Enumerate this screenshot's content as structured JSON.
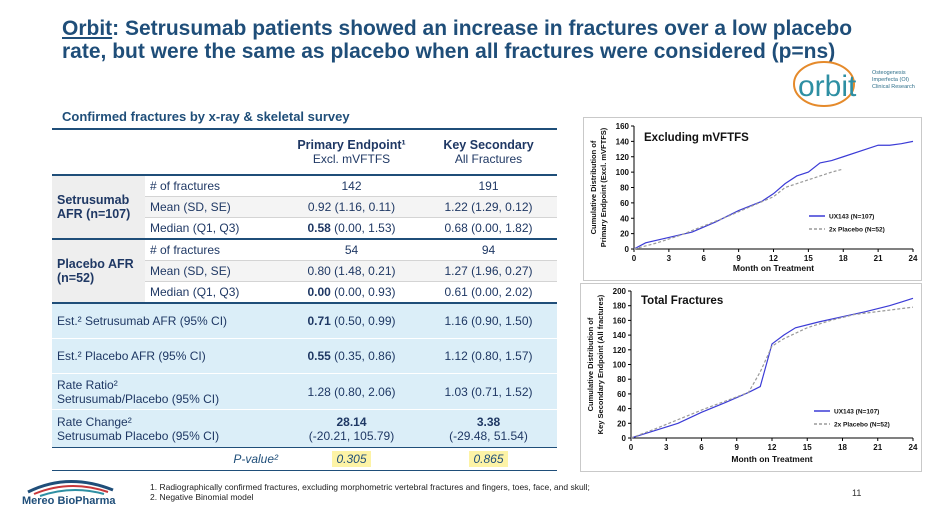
{
  "title": {
    "lead": "Orbit",
    "text": ": Setrusumab patients showed an increase in fractures over a low placebo rate, but were the same as placebo when all fractures were considered (p=ns)"
  },
  "logo": {
    "name": "orbit",
    "tagline": [
      "Osteogenesis",
      "Imperfecta (OI)",
      "Clinical Research"
    ]
  },
  "subtitle": "Confirmed fractures by x-ray & skeletal survey",
  "table": {
    "headers": [
      {
        "title": "Primary Endpoint¹",
        "sub": "Excl. mVFTFS"
      },
      {
        "title": "Key Secondary",
        "sub": "All Fractures"
      }
    ],
    "groups": [
      {
        "name": "Setrusumab AFR (n=107)",
        "rows": [
          {
            "label": "# of fractures",
            "cells": [
              "142",
              "191"
            ]
          },
          {
            "label": "Mean (SD, SE)",
            "cells": [
              "0.92 (1.16, 0.11)",
              "1.22 (1.29, 0.12)"
            ]
          },
          {
            "label": "Median (Q1, Q3)",
            "cells": [
              {
                "lead": "0.58",
                "rest": "(0.00, 1.53)"
              },
              "0.68 (0.00, 1.82)"
            ]
          }
        ]
      },
      {
        "name": "Placebo AFR (n=52)",
        "rows": [
          {
            "label": "# of fractures",
            "cells": [
              "54",
              "94"
            ]
          },
          {
            "label": "Mean (SD, SE)",
            "cells": [
              "0.80 (1.48, 0.21)",
              "1.27 (1.96, 0.27)"
            ]
          },
          {
            "label": "Median (Q1, Q3)",
            "cells": [
              {
                "lead": "0.00",
                "rest": "(0.00, 0.93)"
              },
              "0.61 (0.00, 2.02)"
            ]
          }
        ]
      }
    ],
    "estimates": [
      {
        "label": [
          "Est.² Setrusumab AFR (95% CI)"
        ],
        "cells": [
          {
            "lead": "0.71",
            "rest": "(0.50, 0.99)"
          },
          "1.16 (0.90, 1.50)"
        ]
      },
      {
        "label": [
          "Est.² Placebo AFR (95% CI)"
        ],
        "cells": [
          {
            "lead": "0.55",
            "rest": "(0.35, 0.86)"
          },
          "1.12 (0.80, 1.57)"
        ]
      },
      {
        "label": [
          "Rate Ratio²",
          "Setrusumab/Placebo (95% CI)"
        ],
        "cells": [
          "1.28 (0.80, 2.06)",
          "1.03 (0.71, 1.52)"
        ]
      },
      {
        "label": [
          "Rate Change²",
          "Setrusumab Placebo (95% CI)"
        ],
        "cells": [
          {
            "lead": "28.14",
            "rest": "(-20.21, 105.79)"
          },
          {
            "lead": "3.38",
            "rest": "(-29.48, 51.54)"
          }
        ]
      }
    ],
    "pvalue": {
      "label": "P-value²",
      "values": [
        "0.305",
        "0.865"
      ]
    }
  },
  "chart_data": [
    {
      "type": "line",
      "title": "Excluding mVFTFS",
      "xlabel": "Month on Treatment",
      "ylabel": [
        "Cumulative Distribution of",
        "Primary Endpoint (Excl. mVFTFS)"
      ],
      "xlim": [
        0,
        24
      ],
      "xticks": [
        0,
        3,
        6,
        9,
        12,
        15,
        18,
        21,
        24
      ],
      "ylim": [
        0,
        160
      ],
      "yticks": [
        0,
        20,
        40,
        60,
        80,
        100,
        120,
        140,
        160
      ],
      "series": [
        {
          "name": "UX143 (N=107)",
          "color": "#3b3bd6",
          "style": "solid",
          "x": [
            0,
            1,
            3,
            5,
            7,
            9,
            11,
            12,
            13,
            14,
            15,
            16,
            17,
            18,
            20,
            21,
            22,
            23,
            24
          ],
          "values": [
            0,
            8,
            15,
            22,
            35,
            50,
            62,
            72,
            85,
            95,
            100,
            112,
            115,
            120,
            130,
            135,
            135,
            137,
            140
          ]
        },
        {
          "name": "2x Placebo (N=52)",
          "color": "#9a9a9a",
          "style": "dashed",
          "x": [
            0,
            2,
            4,
            6,
            8,
            10,
            12,
            13,
            14,
            15,
            16,
            17,
            18
          ],
          "values": [
            0,
            8,
            18,
            30,
            42,
            55,
            68,
            80,
            85,
            90,
            95,
            100,
            104
          ]
        }
      ]
    },
    {
      "type": "line",
      "title": "Total Fractures",
      "xlabel": "Month on Treatment",
      "ylabel": [
        "Cumulative Distribution of",
        "Key Secondary Endpoint (All fractures)"
      ],
      "xlim": [
        0,
        24
      ],
      "xticks": [
        0,
        3,
        6,
        9,
        12,
        15,
        18,
        21,
        24
      ],
      "ylim": [
        0,
        200
      ],
      "yticks": [
        0,
        20,
        40,
        60,
        80,
        100,
        120,
        140,
        160,
        180,
        200
      ],
      "series": [
        {
          "name": "UX143 (N=107)",
          "color": "#3b3bd6",
          "style": "solid",
          "x": [
            0,
            2,
            4,
            6,
            8,
            10,
            11,
            12,
            13,
            14,
            16,
            18,
            20,
            22,
            23,
            24
          ],
          "values": [
            0,
            10,
            20,
            35,
            48,
            62,
            70,
            128,
            140,
            150,
            158,
            165,
            172,
            180,
            185,
            190
          ]
        },
        {
          "name": "2x Placebo (N=52)",
          "color": "#9a9a9a",
          "style": "dashed",
          "x": [
            0,
            2,
            4,
            6,
            8,
            10,
            11,
            12,
            13,
            15,
            17,
            19,
            21,
            24
          ],
          "values": [
            0,
            12,
            25,
            38,
            50,
            62,
            90,
            125,
            135,
            150,
            160,
            168,
            172,
            178
          ]
        }
      ]
    }
  ],
  "footnotes": [
    "1. Radiographically confirmed fractures, excluding morphometric vertebral fractures and fingers, toes, face, and skull;",
    "2. Negative Binomial model"
  ],
  "company": "Mereo BioPharma",
  "page_number": "11"
}
